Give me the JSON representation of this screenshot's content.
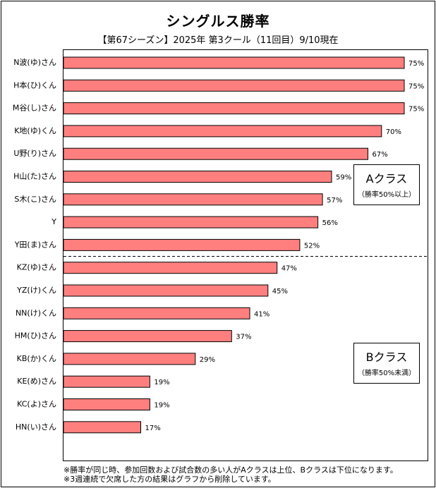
{
  "header": {
    "title": "シングルス勝率",
    "subtitle": "【第67シーズン】2025年 第3クール（11回目）9/10現在"
  },
  "classes": {
    "a": {
      "title": "Aクラス",
      "sub": "（勝率50%以上）"
    },
    "b": {
      "title": "Bクラス",
      "sub": "（勝率50%未満）"
    }
  },
  "notes": [
    "※勝率が同じ時、参加回数および試合数の多い人がAクラスは上位、Bクラスは下位になります。",
    "※3週連続で欠席した方の結果はグラフから削除しています。"
  ],
  "colors": {
    "bar": "#ff7f7f",
    "bar_edge": "#000000"
  },
  "chart_data": {
    "type": "bar",
    "orientation": "horizontal",
    "title": "シングルス勝率",
    "subtitle": "【第67シーズン】2025年 第3クール（11回目）9/10現在",
    "xlim": [
      0,
      80
    ],
    "categories": [
      "N波(ゆ)さん",
      "H本(ひ)くん",
      "M谷(し)さん",
      "K地(ゆ)くん",
      "U野(り)さん",
      "H山(た)さん",
      "S木(こ)さん",
      "Y",
      "Y田(ま)さん",
      "KZ(ゆ)さん",
      "YZ(け)くん",
      "NN(け)くん",
      "HM(ひ)さん",
      "KB(か)くん",
      "KE(め)さん",
      "KC(よ)さん",
      "HN(い)さん"
    ],
    "values": [
      75,
      75,
      75,
      70,
      67,
      59,
      57,
      56,
      52,
      47,
      45,
      41,
      37,
      29,
      19,
      19,
      17
    ],
    "value_labels": [
      "75%",
      "75%",
      "75%",
      "70%",
      "67%",
      "59%",
      "57%",
      "56%",
      "52%",
      "47%",
      "45%",
      "41%",
      "37%",
      "29%",
      "19%",
      "19%",
      "17%"
    ],
    "class_split_after": 9,
    "grid": false,
    "legend": "none"
  }
}
